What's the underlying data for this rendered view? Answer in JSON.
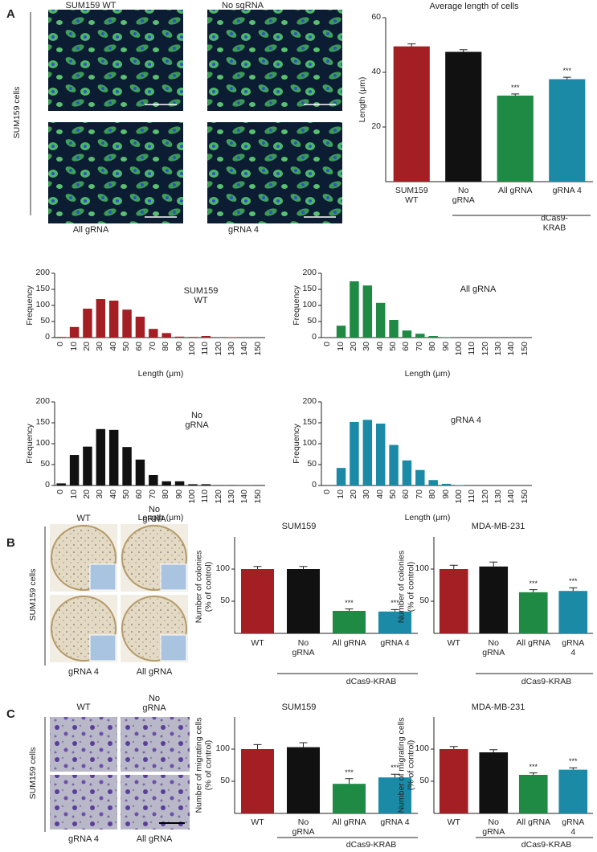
{
  "panel_labels": [
    "A",
    "B",
    "C"
  ],
  "images": [
    {
      "side_label": "SUM159 cells",
      "captions": [
        "SUM159 WT",
        "No sgRNA",
        "All gRNA",
        "gRNA 4"
      ]
    },
    {
      "side_label": "SUM159 cells",
      "captions": [
        "WT",
        "No\ngRNA",
        "gRNA 4",
        "All gRNA"
      ]
    },
    {
      "side_label": "SUM159 cells",
      "captions": [
        "WT",
        "No\ngRNA",
        "gRNA 4",
        "All gRNA"
      ]
    }
  ],
  "chart_data": [
    {
      "type": "bar",
      "title": "Average length of cells",
      "ylabel": "Length (μm)",
      "categories": [
        "SUM159\nWT",
        "No\ngRNA",
        "All gRNA",
        "gRNA 4"
      ],
      "values": [
        49.5,
        47.5,
        31.5,
        37.5
      ],
      "errors": [
        0.9,
        0.8,
        0.6,
        0.7
      ],
      "annotations": [
        null,
        null,
        "***",
        "***"
      ],
      "colors": [
        "#a31f24",
        "#111111",
        "#1e8a43",
        "#1a8aa6"
      ],
      "ylim": [
        0,
        60
      ],
      "yticks": [
        20,
        40,
        60
      ],
      "group_label": "dCas9-KRAB"
    },
    {
      "type": "histogram",
      "title": "SUM159\nWT",
      "xlabel": "Length (μm)",
      "ylabel": "Frequency",
      "categories": [
        "0",
        "10",
        "20",
        "30",
        "40",
        "50",
        "60",
        "70",
        "80",
        "90",
        "100",
        "110",
        "120",
        "130",
        "140",
        "150"
      ],
      "values": [
        2,
        33,
        90,
        120,
        115,
        87,
        65,
        27,
        14,
        3,
        2,
        5,
        0,
        1,
        0,
        0
      ],
      "color": "#a31f24",
      "ylim": [
        0,
        200
      ],
      "yticks": [
        0,
        50,
        100,
        150,
        200
      ]
    },
    {
      "type": "histogram",
      "title": "All gRNA",
      "xlabel": "Length (μm)",
      "ylabel": "Frequency",
      "categories": [
        "0",
        "10",
        "20",
        "30",
        "40",
        "50",
        "60",
        "70",
        "80",
        "90",
        "100",
        "110",
        "120",
        "130",
        "140",
        "150"
      ],
      "values": [
        0,
        37,
        175,
        162,
        108,
        55,
        22,
        12,
        5,
        1,
        0,
        0,
        0,
        0,
        0,
        0
      ],
      "color": "#1e8a43",
      "ylim": [
        0,
        200
      ],
      "yticks": [
        0,
        50,
        100,
        150,
        200
      ]
    },
    {
      "type": "histogram",
      "title": "No\ngRNA",
      "xlabel": "Length (μm)",
      "ylabel": "Frequency",
      "categories": [
        "0",
        "10",
        "20",
        "30",
        "40",
        "50",
        "60",
        "70",
        "80",
        "90",
        "100",
        "110",
        "120",
        "130",
        "140",
        "150"
      ],
      "values": [
        5,
        73,
        93,
        135,
        133,
        92,
        62,
        25,
        10,
        10,
        3,
        3,
        1,
        1,
        0,
        1
      ],
      "color": "#111111",
      "ylim": [
        0,
        200
      ],
      "yticks": [
        0,
        50,
        100,
        150,
        200
      ]
    },
    {
      "type": "histogram",
      "title": "gRNA 4",
      "xlabel": "Length (μm)",
      "ylabel": "Frequency",
      "categories": [
        "0",
        "10",
        "20",
        "30",
        "40",
        "50",
        "60",
        "70",
        "80",
        "90",
        "100",
        "110",
        "120",
        "130",
        "140",
        "150"
      ],
      "values": [
        0,
        42,
        152,
        157,
        148,
        97,
        60,
        37,
        13,
        4,
        1,
        0,
        0,
        0,
        0,
        0
      ],
      "color": "#1a8aa6",
      "ylim": [
        0,
        200
      ],
      "yticks": [
        0,
        50,
        100,
        150,
        200
      ]
    },
    {
      "type": "bar",
      "title": "SUM159",
      "ylabel": "Number of colonies\n(% of control)",
      "categories": [
        "WT",
        "No\ngRNA",
        "All gRNA",
        "gRNA 4"
      ],
      "values": [
        100,
        100,
        35,
        34
      ],
      "errors": [
        4,
        4,
        3,
        3
      ],
      "annotations": [
        null,
        null,
        "***",
        "***"
      ],
      "colors": [
        "#a31f24",
        "#111111",
        "#1e8a43",
        "#1a8aa6"
      ],
      "ylim": [
        0,
        150
      ],
      "yticks": [
        50,
        100
      ],
      "group_label": "dCas9-KRAB"
    },
    {
      "type": "bar",
      "title": "MDA-MB-231",
      "ylabel": "Number of colonies\n(% of control)",
      "categories": [
        "WT",
        "No\ngRNA",
        "All gRNA",
        "gRNA 4"
      ],
      "values": [
        100,
        104,
        64,
        66
      ],
      "errors": [
        6,
        7,
        4,
        5
      ],
      "annotations": [
        null,
        null,
        "***",
        "***"
      ],
      "colors": [
        "#a31f24",
        "#111111",
        "#1e8a43",
        "#1a8aa6"
      ],
      "ylim": [
        0,
        150
      ],
      "yticks": [
        50,
        100
      ],
      "group_label": "dCas9-KRAB"
    },
    {
      "type": "bar",
      "title": "SUM159",
      "ylabel": "Number of migrating cells\n(% of control)",
      "categories": [
        "WT",
        "No\ngRNA",
        "All gRNA",
        "gRNA 4"
      ],
      "values": [
        100,
        103,
        46,
        56
      ],
      "errors": [
        7,
        7,
        8,
        5
      ],
      "annotations": [
        null,
        null,
        "***",
        "***"
      ],
      "colors": [
        "#a31f24",
        "#111111",
        "#1e8a43",
        "#1a8aa6"
      ],
      "ylim": [
        0,
        150
      ],
      "yticks": [
        50,
        100
      ],
      "group_label": "dCas9-KRAB"
    },
    {
      "type": "bar",
      "title": "MDA-MB-231",
      "ylabel": "Number of migrating cells\n(% of control)",
      "categories": [
        "WT",
        "No\ngRNA",
        "All gRNA",
        "gRNA 4"
      ],
      "values": [
        100,
        95,
        60,
        68
      ],
      "errors": [
        4,
        4,
        3,
        3
      ],
      "annotations": [
        null,
        null,
        "***",
        "***"
      ],
      "colors": [
        "#a31f24",
        "#111111",
        "#1e8a43",
        "#1a8aa6"
      ],
      "ylim": [
        0,
        150
      ],
      "yticks": [
        50,
        100
      ],
      "group_label": "dCas9-KRAB"
    }
  ]
}
